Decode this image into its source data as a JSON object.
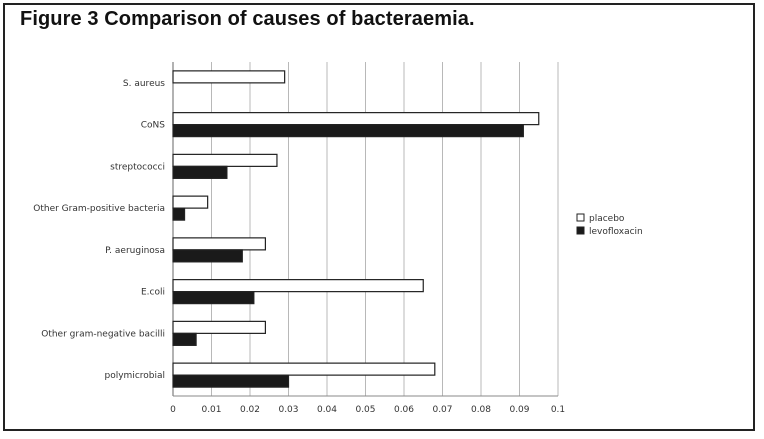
{
  "figure": {
    "title": "Figure 3 Comparison of causes of bacteraemia."
  },
  "chart_data": {
    "type": "bar",
    "orientation": "horizontal",
    "categories": [
      "S. aureus",
      "CoNS",
      "streptococci",
      "Other Gram-positive bacteria",
      "P. aeruginosa",
      "E.coli",
      "Other gram-negative bacilli",
      "polymicrobial"
    ],
    "series": [
      {
        "name": "placebo",
        "color": "#ffffff",
        "values": [
          0.029,
          0.095,
          0.027,
          0.009,
          0.024,
          0.065,
          0.024,
          0.068
        ]
      },
      {
        "name": "levofloxacin",
        "color": "#1a1a1a",
        "values": [
          0.0,
          0.091,
          0.014,
          0.003,
          0.018,
          0.021,
          0.006,
          0.03
        ]
      }
    ],
    "xlim": [
      0,
      0.1
    ],
    "xticks": [
      "0",
      "0.01",
      "0.02",
      "0.03",
      "0.04",
      "0.05",
      "0.06",
      "0.07",
      "0.08",
      "0.09",
      "0.1"
    ],
    "grid": true,
    "legend_position": "right"
  }
}
